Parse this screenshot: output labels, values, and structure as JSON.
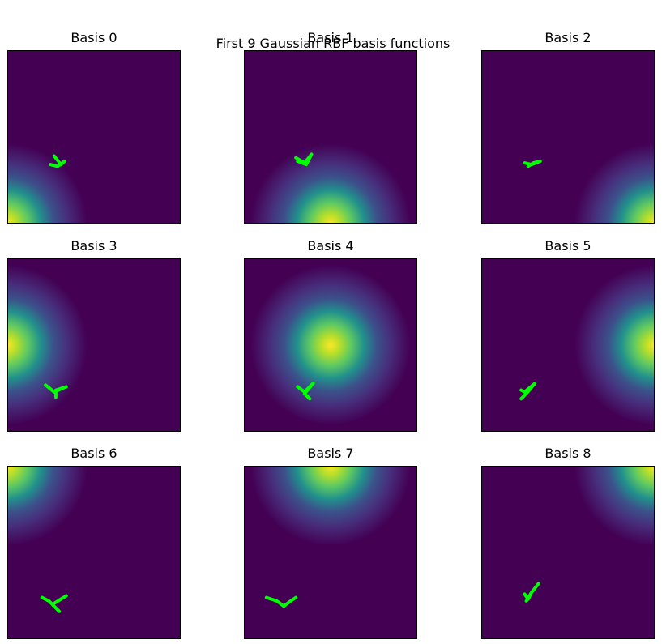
{
  "chart_data": {
    "type": "heatmap",
    "title": "First 9 Gaussian RBF basis functions",
    "colormap": "viridis",
    "colors": {
      "low": "#440154",
      "mid": "#21918c",
      "high": "#fde725",
      "marker": "#00ff00"
    },
    "axes_visible": false,
    "grid": false,
    "panels": [
      {
        "title": "Basis 0",
        "center": [
          0.0,
          1.0
        ],
        "stroke": [
          [
            0.27,
            0.61
          ],
          [
            0.31,
            0.66
          ],
          [
            0.33,
            0.64
          ],
          [
            0.29,
            0.67
          ],
          [
            0.25,
            0.66
          ]
        ]
      },
      {
        "title": "Basis 1",
        "center": [
          0.5,
          1.0
        ],
        "stroke": [
          [
            0.3,
            0.62
          ],
          [
            0.35,
            0.65
          ],
          [
            0.39,
            0.6
          ],
          [
            0.36,
            0.66
          ],
          [
            0.31,
            0.64
          ]
        ]
      },
      {
        "title": "Basis 2",
        "center": [
          1.0,
          1.0
        ],
        "stroke": [
          [
            0.27,
            0.67
          ],
          [
            0.3,
            0.65
          ],
          [
            0.34,
            0.64
          ],
          [
            0.29,
            0.66
          ],
          [
            0.25,
            0.65
          ]
        ]
      },
      {
        "title": "Basis 3",
        "center": [
          0.0,
          0.5
        ],
        "stroke": [
          [
            0.22,
            0.73
          ],
          [
            0.27,
            0.77
          ],
          [
            0.34,
            0.74
          ],
          [
            0.28,
            0.76
          ],
          [
            0.28,
            0.8
          ]
        ]
      },
      {
        "title": "Basis 4",
        "center": [
          0.5,
          0.5
        ],
        "stroke": [
          [
            0.31,
            0.74
          ],
          [
            0.35,
            0.77
          ],
          [
            0.4,
            0.72
          ],
          [
            0.35,
            0.78
          ],
          [
            0.38,
            0.81
          ]
        ]
      },
      {
        "title": "Basis 5",
        "center": [
          1.0,
          0.5
        ],
        "stroke": [
          [
            0.23,
            0.76
          ],
          [
            0.25,
            0.77
          ],
          [
            0.31,
            0.72
          ],
          [
            0.26,
            0.78
          ],
          [
            0.23,
            0.81
          ]
        ]
      },
      {
        "title": "Basis 6",
        "center": [
          0.0,
          0.0
        ],
        "stroke": [
          [
            0.2,
            0.76
          ],
          [
            0.24,
            0.78
          ],
          [
            0.3,
            0.84
          ],
          [
            0.26,
            0.8
          ],
          [
            0.34,
            0.75
          ]
        ]
      },
      {
        "title": "Basis 7",
        "center": [
          0.5,
          0.0
        ],
        "stroke": [
          [
            0.13,
            0.76
          ],
          [
            0.19,
            0.78
          ],
          [
            0.23,
            0.81
          ],
          [
            0.27,
            0.78
          ],
          [
            0.3,
            0.76
          ]
        ]
      },
      {
        "title": "Basis 8",
        "center": [
          1.0,
          0.0
        ],
        "stroke": [
          [
            0.25,
            0.74
          ],
          [
            0.27,
            0.77
          ],
          [
            0.29,
            0.73
          ],
          [
            0.33,
            0.68
          ],
          [
            0.29,
            0.73
          ],
          [
            0.26,
            0.78
          ]
        ]
      }
    ]
  }
}
